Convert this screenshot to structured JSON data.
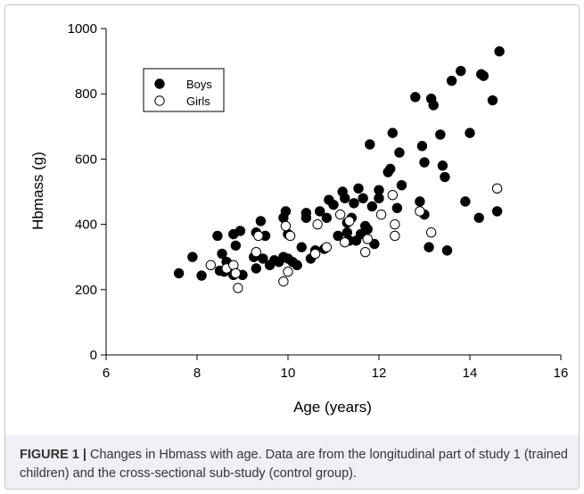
{
  "chart_data": {
    "type": "scatter",
    "xlabel": "Age (years)",
    "ylabel": "Hbmass (g)",
    "xlim": [
      6,
      16
    ],
    "ylim": [
      0,
      1000
    ],
    "xticks": [
      6,
      8,
      10,
      12,
      14,
      16
    ],
    "yticks": [
      0,
      200,
      400,
      600,
      800,
      1000
    ],
    "legend": "upper left",
    "series": [
      {
        "name": "Boys",
        "color": "#000000",
        "filled": true,
        "x": [
          7.6,
          7.9,
          8.1,
          8.45,
          8.5,
          8.55,
          8.6,
          8.65,
          8.7,
          8.8,
          8.8,
          8.85,
          8.95,
          9.0,
          9.25,
          9.3,
          9.3,
          9.4,
          9.45,
          9.5,
          9.6,
          9.7,
          9.8,
          9.9,
          9.9,
          9.95,
          10.0,
          10.0,
          10.1,
          10.2,
          10.3,
          10.4,
          10.4,
          10.5,
          10.6,
          10.7,
          10.8,
          10.85,
          10.9,
          11.0,
          11.1,
          11.2,
          11.25,
          11.3,
          11.3,
          11.35,
          11.4,
          11.45,
          11.5,
          11.55,
          11.6,
          11.65,
          11.7,
          11.75,
          11.8,
          11.85,
          11.9,
          12.0,
          12.0,
          12.2,
          12.25,
          12.3,
          12.4,
          12.45,
          12.5,
          12.8,
          12.9,
          12.95,
          13.0,
          13.0,
          13.1,
          13.15,
          13.2,
          13.35,
          13.4,
          13.45,
          13.5,
          13.6,
          13.8,
          13.9,
          14.0,
          14.2,
          14.25,
          14.3,
          14.5,
          14.65,
          14.6
        ],
        "values": [
          250,
          300,
          243,
          365,
          258,
          310,
          255,
          285,
          260,
          245,
          370,
          335,
          380,
          245,
          300,
          375,
          265,
          410,
          295,
          365,
          275,
          290,
          285,
          300,
          420,
          440,
          295,
          370,
          285,
          275,
          330,
          435,
          420,
          295,
          320,
          440,
          325,
          420,
          475,
          460,
          365,
          500,
          480,
          405,
          375,
          350,
          420,
          465,
          350,
          510,
          370,
          480,
          395,
          385,
          645,
          455,
          340,
          480,
          505,
          560,
          570,
          680,
          450,
          620,
          520,
          790,
          470,
          640,
          430,
          590,
          330,
          785,
          765,
          675,
          580,
          545,
          320,
          840,
          870,
          470,
          680,
          420,
          860,
          855,
          780,
          930,
          440
        ]
      },
      {
        "name": "Girls",
        "color": "#000000",
        "filled": false,
        "x": [
          8.3,
          8.65,
          8.8,
          8.85,
          8.9,
          9.3,
          9.35,
          9.9,
          9.95,
          10.0,
          10.05,
          10.6,
          10.65,
          10.85,
          11.15,
          11.25,
          11.35,
          11.7,
          11.75,
          12.05,
          12.3,
          12.35,
          12.35,
          12.9,
          13.15,
          14.6
        ],
        "values": [
          275,
          265,
          275,
          250,
          205,
          315,
          365,
          225,
          395,
          255,
          365,
          310,
          400,
          330,
          430,
          345,
          410,
          315,
          355,
          430,
          490,
          365,
          400,
          440,
          375,
          510
        ]
      }
    ]
  },
  "caption": {
    "label": "FIGURE 1 |",
    "text": "Changes in Hbmass with age. Data are from the longitudinal part of study 1 (trained children) and the cross-sectional sub-study (control group)."
  }
}
